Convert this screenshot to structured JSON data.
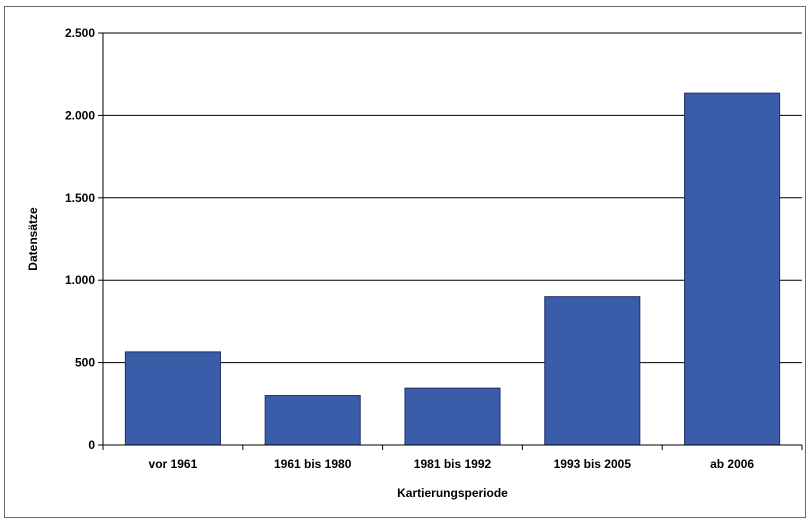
{
  "chart_data": {
    "type": "bar",
    "title": "",
    "xlabel": "Kartierungsperiode",
    "ylabel": "Datensätze",
    "categories": [
      "vor 1961",
      "1961 bis 1980",
      "1981 bis 1992",
      "1993 bis 2005",
      "ab 2006"
    ],
    "values": [
      565,
      300,
      345,
      900,
      2135
    ],
    "ylim": [
      0,
      2500
    ],
    "yticks": [
      0,
      500,
      1000,
      1500,
      2000,
      2500
    ],
    "ytick_labels": [
      "0",
      "500",
      "1.000",
      "1.500",
      "2.000",
      "2.500"
    ],
    "grid": "horizontal",
    "legend": "none",
    "bar_color": "#3b5ca8",
    "bar_edge_color": "#1f2f63",
    "grid_color": "#000000"
  }
}
